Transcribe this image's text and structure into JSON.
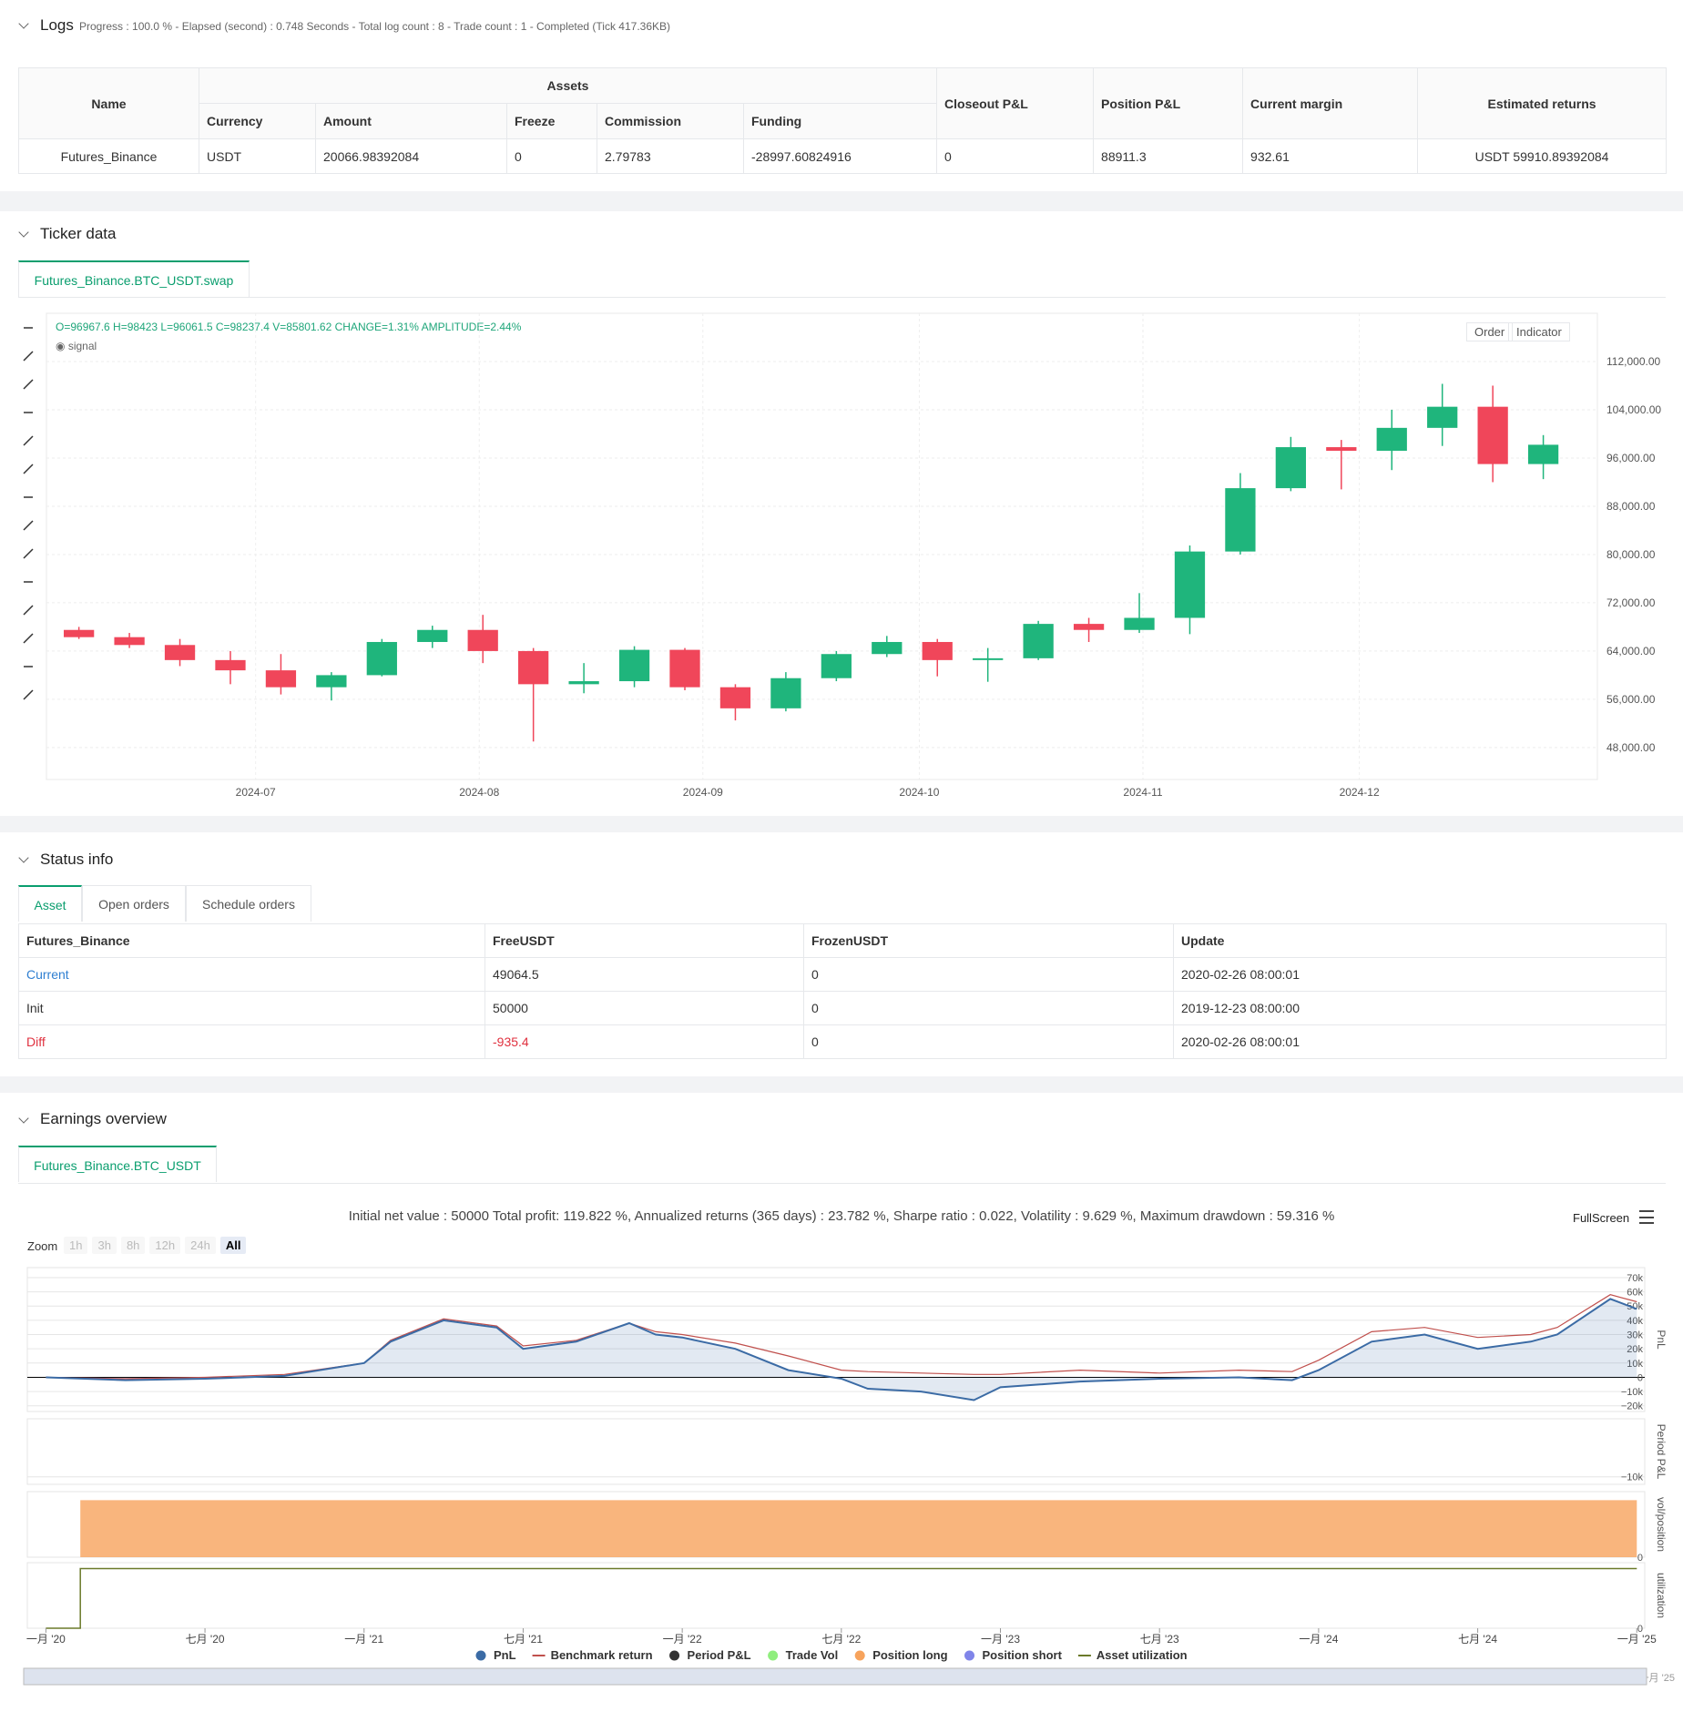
{
  "logs": {
    "title": "Logs",
    "summary": "Progress : 100.0 % - Elapsed (second) : 0.748  Seconds - Total log count : 8 - Trade count : 1 - Completed (Tick 417.36KB)",
    "table": {
      "header_top": [
        "Name",
        "Assets",
        "Closeout P&L",
        "Position P&L",
        "Current margin",
        "Estimated returns"
      ],
      "header_sub": [
        "Currency",
        "Amount",
        "Freeze",
        "Commission",
        "Funding"
      ],
      "rows": [
        [
          "Futures_Binance",
          "USDT",
          "20066.98392084",
          "0",
          "2.79783",
          "-28997.60824916",
          "0",
          "88911.3",
          "932.61",
          "USDT 59910.89392084"
        ]
      ]
    }
  },
  "ticker": {
    "title": "Ticker data",
    "tab": "Futures_Binance.BTC_USDT.swap",
    "ohlc_text": "O=96967.6 H=98423 L=96061.5 C=98237.4 V=85801.62 CHANGE=1.31% AMPLITUDE=2.44%",
    "signal": "signal",
    "buttons": [
      "Order",
      "Indicator"
    ],
    "chart_data": {
      "type": "candlestick",
      "up_color": "#1fb57c",
      "down_color": "#f0465a",
      "x": [
        0,
        7,
        14,
        21,
        28,
        35,
        42,
        49,
        56,
        63,
        70,
        77,
        84,
        91,
        98,
        105,
        112,
        119,
        126,
        133,
        140,
        147,
        154,
        161,
        168,
        175,
        182,
        189,
        196,
        203
      ],
      "ohlc": [
        [
          67500,
          68000,
          66000,
          66300
        ],
        [
          66300,
          67000,
          64500,
          65000
        ],
        [
          65000,
          66000,
          61500,
          62500
        ],
        [
          62500,
          64000,
          58500,
          60800
        ],
        [
          60800,
          63500,
          56800,
          58000
        ],
        [
          58000,
          60500,
          55800,
          60000
        ],
        [
          60000,
          66000,
          59800,
          65500
        ],
        [
          65500,
          68200,
          64500,
          67500
        ],
        [
          67500,
          70000,
          62000,
          64000
        ],
        [
          64000,
          64500,
          49000,
          58500
        ],
        [
          58500,
          62000,
          57000,
          59000
        ],
        [
          59000,
          64800,
          58000,
          64200
        ],
        [
          64200,
          64500,
          57500,
          58000
        ],
        [
          58000,
          58500,
          52500,
          54500
        ],
        [
          54500,
          60500,
          54000,
          59500
        ],
        [
          59500,
          64000,
          59000,
          63500
        ],
        [
          63500,
          66500,
          63000,
          65500
        ],
        [
          65500,
          66000,
          59800,
          62500
        ],
        [
          62500,
          64500,
          58900,
          62800
        ],
        [
          62800,
          69000,
          62500,
          68500
        ],
        [
          68500,
          69500,
          65500,
          67500
        ],
        [
          67500,
          73600,
          67000,
          69500
        ],
        [
          69500,
          81500,
          66800,
          80500
        ],
        [
          80500,
          93500,
          80000,
          91000
        ],
        [
          91000,
          99500,
          90500,
          97800
        ],
        [
          97800,
          99000,
          90800,
          97200
        ],
        [
          97200,
          104000,
          94000,
          101000
        ],
        [
          101000,
          108300,
          98000,
          104500
        ],
        [
          104500,
          108000,
          92000,
          95000
        ],
        [
          95000,
          99800,
          92500,
          98200
        ]
      ],
      "xlim": [
        -1,
        214
      ],
      "ylim": [
        42700,
        120000
      ],
      "xticks": [
        {
          "value": 28,
          "label": "2024-07"
        },
        {
          "value": 59,
          "label": "2024-08"
        },
        {
          "value": 90,
          "label": "2024-09"
        },
        {
          "value": 120,
          "label": "2024-10"
        },
        {
          "value": 151,
          "label": "2024-11"
        },
        {
          "value": 181,
          "label": "2024-12"
        }
      ],
      "yticks": [
        {
          "value": 48000,
          "label": "48,000.00"
        },
        {
          "value": 56000,
          "label": "56,000.00"
        },
        {
          "value": 64000,
          "label": "64,000.00"
        },
        {
          "value": 72000,
          "label": "72,000.00"
        },
        {
          "value": 80000,
          "label": "80,000.00"
        },
        {
          "value": 88000,
          "label": "88,000.00"
        },
        {
          "value": 96000,
          "label": "96,000.00"
        },
        {
          "value": 104000,
          "label": "104,000.00"
        },
        {
          "value": 112000,
          "label": "112,000.00"
        }
      ],
      "grid": true
    }
  },
  "status": {
    "title": "Status info",
    "tabs": [
      "Asset",
      "Open orders",
      "Schedule orders"
    ],
    "table": {
      "header": [
        "Futures_Binance",
        "FreeUSDT",
        "FrozenUSDT",
        "Update"
      ],
      "rows": [
        [
          "Current",
          "49064.5",
          "0",
          "2020-02-26 08:00:01"
        ],
        [
          "Init",
          "50000",
          "0",
          "2019-12-23 08:00:00"
        ],
        [
          "Diff",
          "-935.4",
          "0",
          "2020-02-26 08:00:01"
        ]
      ]
    }
  },
  "earnings": {
    "title": "Earnings overview",
    "tab": "Futures_Binance.BTC_USDT",
    "summary": "Initial net value : 50000 Total profit: 119.822 %, Annualized returns (365 days) : 23.782 %, Sharpe ratio : 0.022, Volatility : 9.629 %, Maximum drawdown : 59.316 %",
    "fullscreen": "FullScreen",
    "zoom_label": "Zoom",
    "zoom_buttons": [
      "1h",
      "3h",
      "8h",
      "12h",
      "24h",
      "All"
    ],
    "chart_data": {
      "type": "line",
      "x": [
        0,
        3,
        6,
        9,
        12,
        13,
        15,
        17,
        18,
        20,
        22,
        23,
        24,
        26,
        28,
        30,
        31,
        33,
        35,
        36,
        39,
        42,
        45,
        47,
        48,
        50,
        52,
        54,
        56,
        57,
        59,
        60
      ],
      "series": [
        {
          "name": "PnL",
          "color": "#3b6ba5",
          "values": [
            0,
            -2000,
            -1000,
            1000,
            10000,
            25000,
            40000,
            35000,
            20000,
            25000,
            38000,
            30000,
            28000,
            20000,
            5000,
            -1000,
            -8000,
            -10000,
            -16000,
            -7000,
            -3000,
            -1000,
            0,
            -2000,
            5000,
            25000,
            30000,
            20000,
            25000,
            30000,
            55000,
            48000
          ]
        },
        {
          "name": "Benchmark return",
          "color": "#c0504d",
          "values": [
            0,
            -1000,
            0,
            2000,
            10000,
            26000,
            41000,
            36000,
            22000,
            26000,
            38000,
            32000,
            30000,
            24000,
            15000,
            5000,
            4000,
            3000,
            2000,
            2000,
            5000,
            3000,
            5000,
            4000,
            12000,
            32000,
            35000,
            28000,
            30000,
            35000,
            58000,
            53000
          ]
        },
        {
          "name": "Period P&L",
          "color": "#333333"
        },
        {
          "name": "Trade Vol",
          "color": "#90ee7e"
        },
        {
          "name": "Position long",
          "color": "#f7a35c",
          "x": [
            0,
            1.3,
            1.3,
            60
          ],
          "values": [
            0,
            0,
            1,
            1
          ]
        },
        {
          "name": "Position short",
          "color": "#8085e9"
        },
        {
          "name": "Asset utilization",
          "color": "#6b7a2a",
          "x": [
            0,
            1.3,
            1.3,
            60
          ],
          "values": [
            0,
            0,
            1,
            1
          ]
        }
      ],
      "xlim": [
        -0.7,
        60.3
      ],
      "ylim": [
        -24000,
        77000
      ],
      "period_ylim": [
        -13000,
        13000
      ],
      "position_ylim": [
        0,
        1.15
      ],
      "utilization_ylim": [
        0,
        1.1
      ],
      "axis_titles": [
        "PnL",
        "Period P&L",
        "vol/position",
        "utilization"
      ],
      "yticks": [
        {
          "value": -20000,
          "label": "−20k"
        },
        {
          "value": -10000,
          "label": "−10k"
        },
        0,
        {
          "value": 10000,
          "label": "10k"
        },
        {
          "value": 20000,
          "label": "20k"
        },
        {
          "value": 30000,
          "label": "30k"
        },
        {
          "value": 40000,
          "label": "40k"
        },
        {
          "value": 50000,
          "label": "50k"
        },
        {
          "value": 60000,
          "label": "60k"
        },
        {
          "value": 70000,
          "label": "70k"
        }
      ],
      "period_yticks": [
        {
          "value": -10000,
          "label": "−10k"
        }
      ],
      "position_yticks": [
        0
      ],
      "utilization_yticks": [
        0
      ],
      "xticks": [
        {
          "value": 0,
          "label": "一月 '20"
        },
        {
          "value": 6,
          "label": "七月 '20"
        },
        {
          "value": 12,
          "label": "一月 '21"
        },
        {
          "value": 18,
          "label": "七月 '21"
        },
        {
          "value": 24,
          "label": "一月 '22"
        },
        {
          "value": 30,
          "label": "七月 '22"
        },
        {
          "value": 36,
          "label": "一月 '23"
        },
        {
          "value": 42,
          "label": "七月 '23"
        },
        {
          "value": 48,
          "label": "一月 '24"
        },
        {
          "value": 54,
          "label": "七月 '24"
        },
        {
          "value": 60,
          "label": "一月 '25"
        }
      ]
    }
  }
}
